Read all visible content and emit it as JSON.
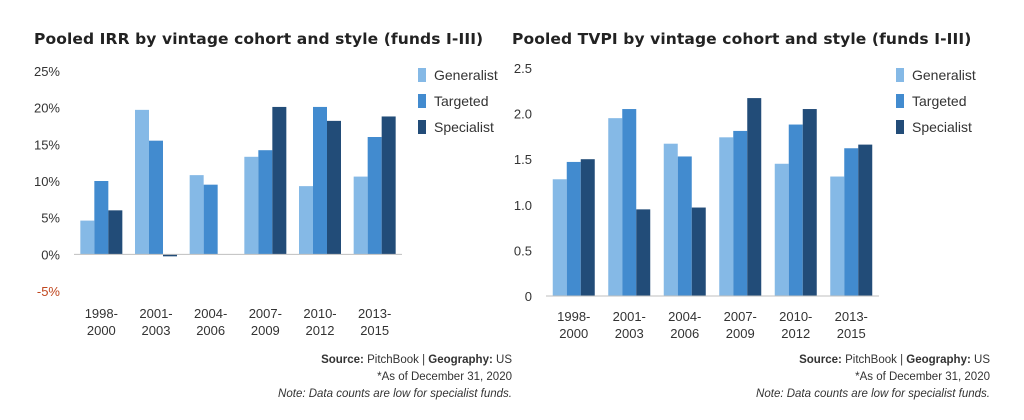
{
  "colors": {
    "generalist": "#85b9e6",
    "targeted": "#428bcf",
    "specialist": "#224c78",
    "negative_tick": "#c0461e",
    "axis": "#bfbfbf"
  },
  "chart_data": [
    {
      "type": "bar",
      "title": "Pooled IRR by vintage cohort and style (funds I-III)",
      "categories": [
        [
          "1998-",
          "2000"
        ],
        [
          "2001-",
          "2003"
        ],
        [
          "2004-",
          "2006"
        ],
        [
          "2007-",
          "2009"
        ],
        [
          "2010-",
          "2012"
        ],
        [
          "2013-",
          "2015"
        ]
      ],
      "series": [
        {
          "name": "Generalist",
          "values": [
            0.046,
            0.197,
            0.108,
            0.133,
            0.093,
            0.106
          ]
        },
        {
          "name": "Targeted",
          "values": [
            0.1,
            0.155,
            0.095,
            0.142,
            0.201,
            0.16
          ]
        },
        {
          "name": "Specialist",
          "values": [
            0.06,
            -0.002,
            null,
            0.201,
            0.182,
            0.188
          ]
        }
      ],
      "yticks": [
        {
          "value": -0.05,
          "label": "-5%"
        },
        {
          "value": 0,
          "label": "0%"
        },
        {
          "value": 0.05,
          "label": "5%"
        },
        {
          "value": 0.1,
          "label": "10%"
        },
        {
          "value": 0.15,
          "label": "15%"
        },
        {
          "value": 0.2,
          "label": "20%"
        },
        {
          "value": 0.25,
          "label": "25%"
        }
      ],
      "ylim": [
        -0.05,
        0.25
      ],
      "legend_position": "top-right",
      "grid": false,
      "footnotes": {
        "source_label": "Source:",
        "source_text": "PitchBook",
        "geo_label": "Geography:",
        "geo_text": "US",
        "asof": "*As of December 31, 2020",
        "note": "Note: Data counts are low for specialist funds."
      }
    },
    {
      "type": "bar",
      "title": "Pooled TVPI by vintage cohort and style (funds I-III)",
      "categories": [
        [
          "1998-",
          "2000"
        ],
        [
          "2001-",
          "2003"
        ],
        [
          "2004-",
          "2006"
        ],
        [
          "2007-",
          "2009"
        ],
        [
          "2010-",
          "2012"
        ],
        [
          "2013-",
          "2015"
        ]
      ],
      "series": [
        {
          "name": "Generalist",
          "values": [
            1.28,
            1.95,
            1.67,
            1.74,
            1.45,
            1.31
          ]
        },
        {
          "name": "Targeted",
          "values": [
            1.47,
            2.05,
            1.53,
            1.81,
            1.88,
            1.62
          ]
        },
        {
          "name": "Specialist",
          "values": [
            1.5,
            0.95,
            0.97,
            2.17,
            2.05,
            1.66
          ]
        }
      ],
      "yticks": [
        {
          "value": 0,
          "label": "0"
        },
        {
          "value": 0.5,
          "label": "0.5"
        },
        {
          "value": 1.0,
          "label": "1.0"
        },
        {
          "value": 1.5,
          "label": "1.5"
        },
        {
          "value": 2.0,
          "label": "2.0"
        },
        {
          "value": 2.5,
          "label": "2.5"
        }
      ],
      "ylim": [
        0,
        2.5
      ],
      "legend_position": "top-right",
      "grid": false,
      "footnotes": {
        "source_label": "Source:",
        "source_text": "PitchBook",
        "geo_label": "Geography:",
        "geo_text": "US",
        "asof": "*As of December 31, 2020",
        "note": "Note: Data counts are low for specialist funds."
      }
    }
  ]
}
